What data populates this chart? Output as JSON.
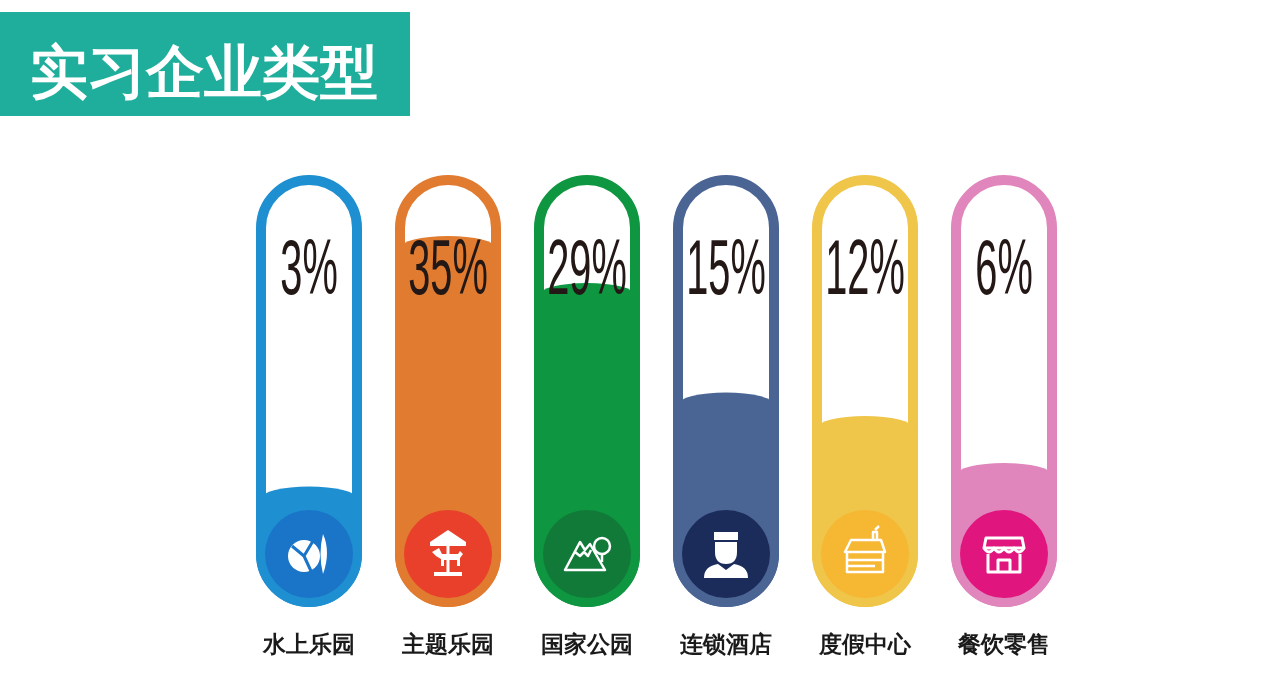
{
  "chart_data": {
    "type": "bar",
    "title": "实习企业类型",
    "categories": [
      "水上乐园",
      "主题乐园",
      "国家公园",
      "连锁酒店",
      "度假中心",
      "餐饮零售"
    ],
    "values": [
      3,
      35,
      29,
      15,
      12,
      6
    ],
    "value_labels": [
      "3%",
      "35%",
      "29%",
      "15%",
      "12%",
      "6%"
    ],
    "colors": [
      "#1e8fd0",
      "#e07b30",
      "#0e9640",
      "#4a6494",
      "#efc64a",
      "#e086bc"
    ],
    "tick_labels": "x"
  }
}
